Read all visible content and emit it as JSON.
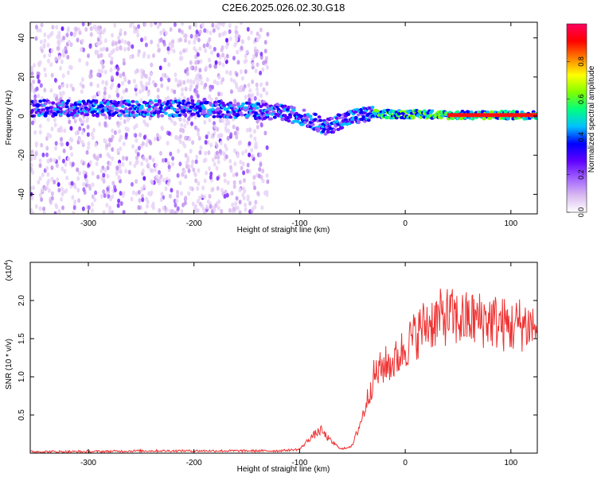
{
  "title": "C2E6.2025.026.02.30.G18",
  "chart_data": [
    {
      "type": "heatmap",
      "xlabel": "Height of straight line (km)",
      "ylabel": "Frequency (Hz)",
      "xlim": [
        -355,
        125
      ],
      "ylim": [
        -50,
        48
      ],
      "xticks": [
        -300,
        -200,
        -100,
        0,
        100
      ],
      "xtick_labels": [
        "-300",
        "-200",
        "-100",
        "0",
        "100"
      ],
      "yticks": [
        -40,
        -20,
        0,
        20,
        40
      ],
      "ytick_labels": [
        "-40",
        "-20",
        "0",
        "20",
        "40"
      ],
      "ridge": {
        "x": [
          -355,
          -320,
          -280,
          -250,
          -200,
          -150,
          -120,
          -100,
          -85,
          -75,
          -60,
          -45,
          -30,
          -10,
          0,
          20,
          40,
          60,
          80,
          100,
          125
        ],
        "y": [
          4,
          4,
          4,
          4,
          4,
          3,
          2,
          0,
          -3,
          -6,
          -2,
          0,
          1,
          1,
          1,
          1,
          0.5,
          0.5,
          0.5,
          0.5,
          0.5
        ]
      },
      "noise_region_x": [
        -355,
        -130
      ],
      "colorbar": {
        "label": "Normalized spectral amplitude",
        "range": [
          0,
          1
        ],
        "ticks": [
          0.0,
          0.2,
          0.4,
          0.6,
          0.8
        ],
        "tick_labels": [
          "0.0",
          "0.2",
          "0.4",
          "0.6",
          "0.8"
        ],
        "colors": [
          "#ffffff",
          "#d8b8f0",
          "#a060ff",
          "#6000ff",
          "#0000ff",
          "#00c0ff",
          "#00ff80",
          "#80ff00",
          "#ffff00",
          "#ff8000",
          "#ff0000",
          "#ff0060"
        ]
      }
    },
    {
      "type": "line",
      "xlabel": "Height of straight line (km)",
      "ylabel": "SNR (10 * v/v)",
      "scale_label": "(x10",
      "scale_exp": "4",
      "scale_close": ")",
      "xlim": [
        -355,
        125
      ],
      "ylim": [
        0,
        2.5
      ],
      "xticks": [
        -300,
        -200,
        -100,
        0,
        100
      ],
      "xtick_labels": [
        "-300",
        "-200",
        "-100",
        "0",
        "100"
      ],
      "yticks": [
        0.5,
        1.0,
        1.5,
        2.0
      ],
      "ytick_labels": [
        "0.5",
        "1.0",
        "1.5",
        "2.0"
      ],
      "series": [
        {
          "color": "#ee3333",
          "x": [
            -355,
            -300,
            -250,
            -200,
            -150,
            -120,
            -100,
            -90,
            -80,
            -70,
            -60,
            -50,
            -40,
            -30,
            -20,
            -10,
            0,
            10,
            20,
            30,
            40,
            50,
            60,
            70,
            80,
            90,
            100,
            110,
            125
          ],
          "y": [
            0.02,
            0.02,
            0.03,
            0.03,
            0.03,
            0.03,
            0.05,
            0.2,
            0.3,
            0.15,
            0.05,
            0.1,
            0.5,
            1.0,
            1.15,
            1.2,
            1.4,
            1.55,
            1.7,
            1.75,
            1.8,
            1.75,
            1.75,
            1.75,
            1.75,
            1.7,
            1.65,
            1.7,
            1.65
          ]
        }
      ]
    }
  ]
}
